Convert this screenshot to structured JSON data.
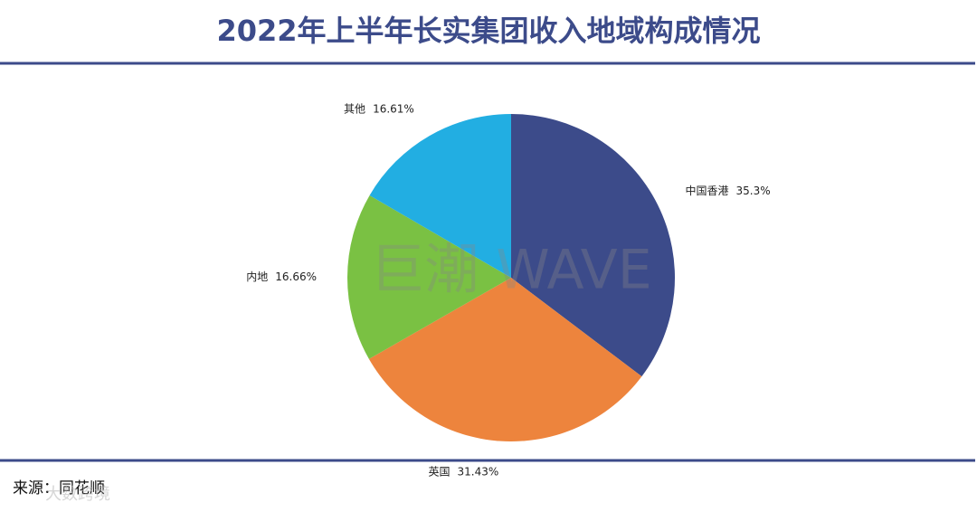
{
  "chart_data": {
    "type": "pie",
    "title": "2022年上半年长实集团收入地域构成情况",
    "categories": [
      "中国香港",
      "英国",
      "内地",
      "其他"
    ],
    "values": [
      35.3,
      31.43,
      16.66,
      16.61
    ],
    "value_labels": [
      "35.3%",
      "31.43%",
      "16.66%",
      "16.61%"
    ],
    "colors": [
      "#3c4b8a",
      "#ed843d",
      "#7ac143",
      "#22aee2"
    ],
    "source": "来源：同花顺",
    "watermarks": [
      "巨潮 WAVE",
      "大数跨境"
    ]
  }
}
